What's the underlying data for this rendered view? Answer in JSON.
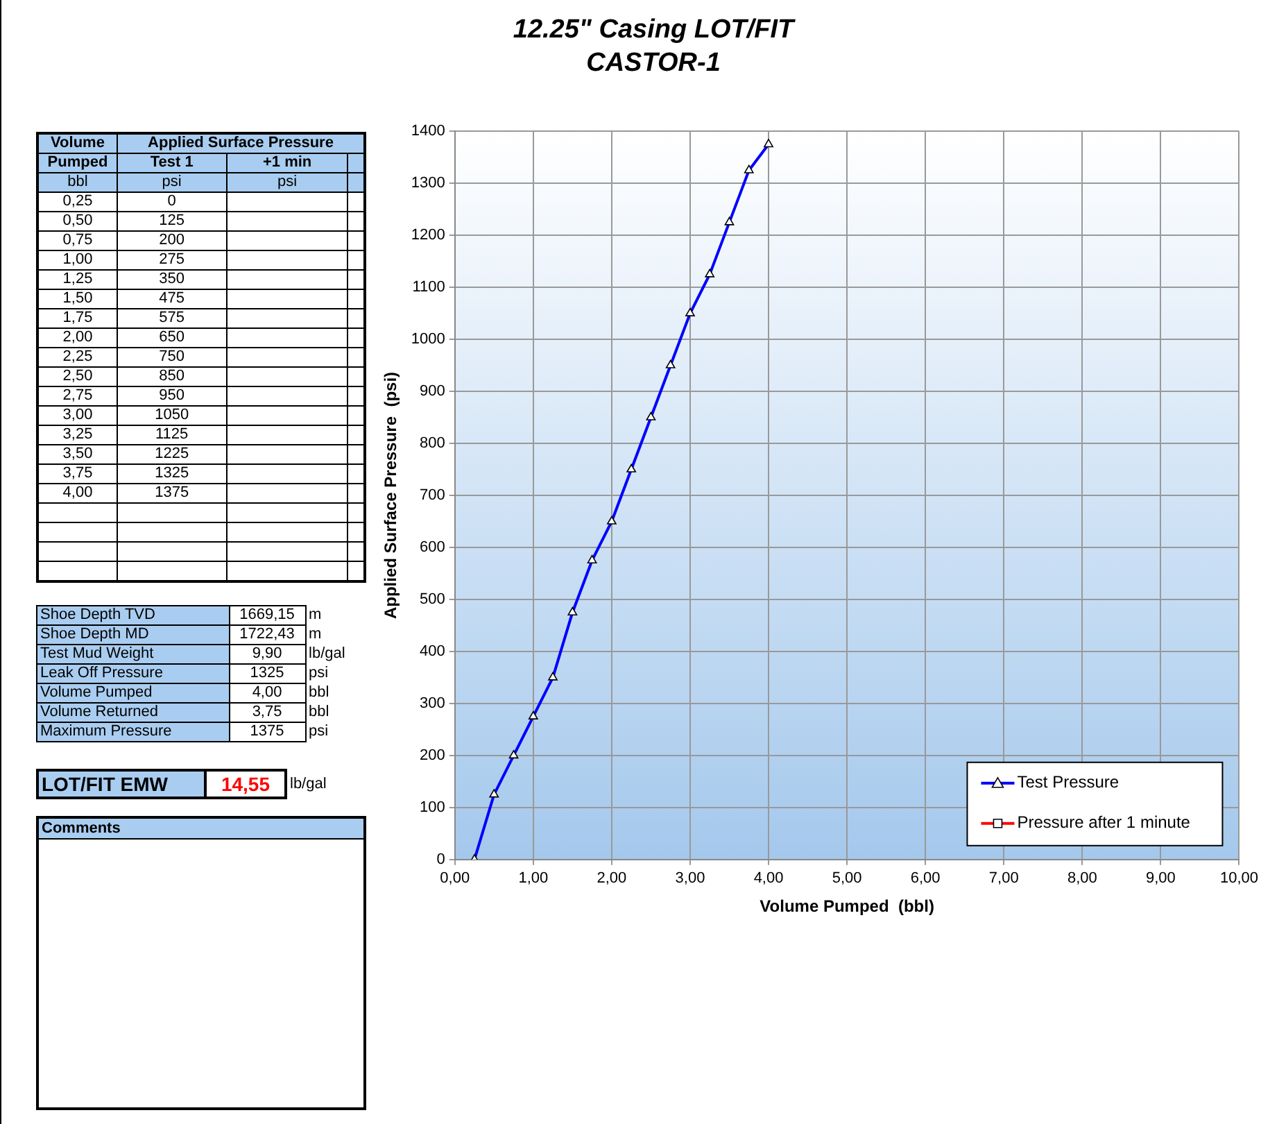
{
  "chart_data": {
    "type": "line",
    "title": "12.25\" Casing LOT/FIT",
    "subtitle": "CASTOR-1",
    "xlabel": "Volume Pumped  (bbl)",
    "ylabel": "Applied Surface Pressure  (psi)",
    "x": [
      0.25,
      0.5,
      0.75,
      1,
      1.25,
      1.5,
      1.75,
      2,
      2.25,
      2.5,
      2.75,
      3,
      3.25,
      3.5,
      3.75,
      4
    ],
    "series": [
      {
        "name": "Test Pressure",
        "color": "#0000ff",
        "marker": "triangle",
        "values": [
          0,
          125,
          200,
          275,
          350,
          475,
          575,
          650,
          750,
          850,
          950,
          1050,
          1125,
          1225,
          1325,
          1375
        ]
      },
      {
        "name": "Pressure after 1 minute",
        "color": "#ff0000",
        "marker": "square",
        "values": [
          null,
          null,
          null,
          null,
          null,
          null,
          null,
          null,
          null,
          null,
          null,
          null,
          null,
          null,
          null,
          null
        ]
      }
    ],
    "xlim": [
      0,
      10
    ],
    "xticks": [
      {
        "value": 0,
        "label": "0,00"
      },
      {
        "value": 1,
        "label": "1,00"
      },
      {
        "value": 2,
        "label": "2,00"
      },
      {
        "value": 3,
        "label": "3,00"
      },
      {
        "value": 4,
        "label": "4,00"
      },
      {
        "value": 5,
        "label": "5,00"
      },
      {
        "value": 6,
        "label": "6,00"
      },
      {
        "value": 7,
        "label": "7,00"
      },
      {
        "value": 8,
        "label": "8,00"
      },
      {
        "value": 9,
        "label": "9,00"
      },
      {
        "value": 10,
        "label": "10,00"
      }
    ],
    "ylim": [
      0,
      1400
    ],
    "yticks": [
      0,
      100,
      200,
      300,
      400,
      500,
      600,
      700,
      800,
      900,
      1000,
      1100,
      1200,
      1300,
      1400
    ],
    "grid": true,
    "legend": "bottom right",
    "line_style": "solid",
    "annotations": [
      "Volume",
      "Applied Surface Pressure",
      "Pumped",
      "Test 1",
      "+1 min",
      "bbl",
      "psi",
      "psi",
      "0,25",
      "0",
      "0,50",
      "125",
      "0,75",
      "200",
      "1,00",
      "275",
      "1,25",
      "350",
      "1,50",
      "475",
      "1,75",
      "575",
      "2,00",
      "650",
      "2,25",
      "750",
      "2,50",
      "850",
      "2,75",
      "950",
      "3,00",
      "1050",
      "3,25",
      "1125",
      "3,50",
      "1225",
      "3,75",
      "1325",
      "4,00",
      "1375",
      "Shoe Depth TVD",
      "1669,15",
      "m",
      "Shoe Depth MD",
      "1722,43",
      "m",
      "Test Mud Weight",
      "9,90",
      "lb/gal",
      "Leak Off Pressure",
      "1325",
      "psi",
      "Volume Pumped",
      "4,00",
      "bbl",
      "Volume Returned",
      "3,75",
      "bbl",
      "Maximum Pressure",
      "1375",
      "psi",
      "LOT/FIT  EMW",
      "14,55",
      "lb/gal",
      "Comments"
    ]
  }
}
